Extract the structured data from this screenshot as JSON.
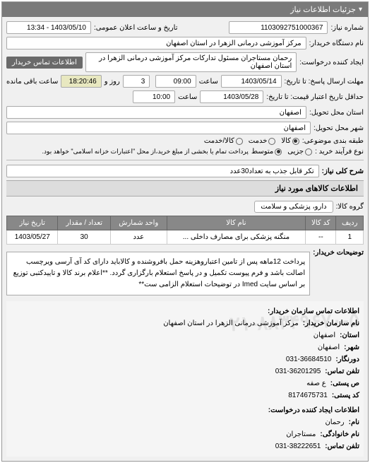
{
  "panel_title": "جزئیات اطلاعات نیاز",
  "fields": {
    "request_number_label": "شماره نیاز:",
    "request_number": "1103092751000367",
    "announce_label": "تاریخ و ساعت اعلان عمومی:",
    "announce_value": "1403/05/10 - 13:34",
    "buyer_org_label": "نام دستگاه خریدار:",
    "buyer_org": "مرکز آموزشی درمانی الزهرا در استان اصفهان",
    "requester_label": "ایجاد کننده درخواست:",
    "requester": "رحمان مستاجران مسئول تدارکات مرکز آموزشی درمانی الزهرا در استان اصفهان",
    "contact_btn": "اطلاعات تماس خریدار",
    "response_deadline_label": "مهلت ارسال پاسخ: تا تاریخ:",
    "response_date": "1403/05/14",
    "response_time_label": "ساعت",
    "response_time": "09:00",
    "remaining_days": "3",
    "remaining_day_label": "روز و",
    "remaining_time": "18:20:46",
    "remaining_label": "ساعت باقی مانده",
    "validity_label": "حداقل تاریخ اعتبار قیمت: تا تاریخ:",
    "validity_date": "1403/05/28",
    "validity_time_label": "ساعت",
    "validity_time": "10:00",
    "province_label": "استان محل تحویل:",
    "province": "اصفهان",
    "city_label": "شهر محل تحویل:",
    "city": "اصفهان",
    "category_label": "طبقه بندی موضوعی:",
    "cat_goods": "کالا",
    "cat_service": "خدمت",
    "cat_both": "کالا/خدمت",
    "purchase_type_label": "نوع فرآیند خرید :",
    "pt_minor": "جزیی",
    "pt_medium": "متوسط",
    "pt_note": "پرداخت تمام یا بخشی از مبلغ خرید،از محل \"اعتبارات خزانه اسلامی\" خواهد بود.",
    "title_label": "شرح کلی نیاز:",
    "title_value": "تکر قابل جذب به تعداد30عدد",
    "goods_section": "اطلاعات کالاهای مورد نیاز",
    "group_label": "گروه کالا:",
    "group_value": "دارو، پزشکی و سلامت",
    "buyer_desc_label": "توضیحات خریدار:",
    "buyer_desc": "پرداخت 12ماهه پس از تامین اعتباروهزینه حمل بافروشنده و کالاباید دارای کد آی آرسی ویرچسب اصالت باشد و فرم پیوست تکمیل و در پاسخ استعلام بارگزاری گردد. **اعلام برند کالا و تاییدکتبی توزیع بر اساس سایت Imed در توضیحات استعلام الزامی ست**"
  },
  "table": {
    "headers": [
      "ردیف",
      "کد کالا",
      "نام کالا",
      "واحد شمارش",
      "تعداد / مقدار",
      "تاریخ نیاز"
    ],
    "rows": [
      [
        "1",
        "--",
        "منگنه پزشکی برای مصارف داخلی ...",
        "عدد",
        "30",
        "1403/05/27"
      ]
    ]
  },
  "contact": {
    "buyer_header": "اطلاعات تماس سازمان خریدار:",
    "org_name_label": "نام سازمان خریدار:",
    "org_name": "مرکز آموزشی درمانی الزهرا در استان اصفهان",
    "province_label": "استان:",
    "province": "اصفهان",
    "city_label": "شهر:",
    "city": "اصفهان",
    "fax_label": "دورنگار:",
    "fax": "031-36684510",
    "phone_label": "تلفن تماس:",
    "phone": "031-36201295",
    "pobox_label": "ص پستی:",
    "pobox": "ع صفه",
    "postcode_label": "کد پستی:",
    "postcode": "8174675731",
    "requester_header": "اطلاعات ایجاد کننده درخواست:",
    "name_label": "نام:",
    "name": "رحمان",
    "lastname_label": "نام خانوادگی:",
    "lastname": "مستاجران",
    "req_phone_label": "تلفن تماس:",
    "req_phone": "031-38222651",
    "watermark": "۰۲۱-۸۸۳۴۹۶۷۰-۵"
  },
  "colors": {
    "header_bg": "#7a7a7a",
    "panel_bg": "#f0f0f0",
    "btn_bg": "#6a6a6a",
    "th_bg": "#888888"
  }
}
